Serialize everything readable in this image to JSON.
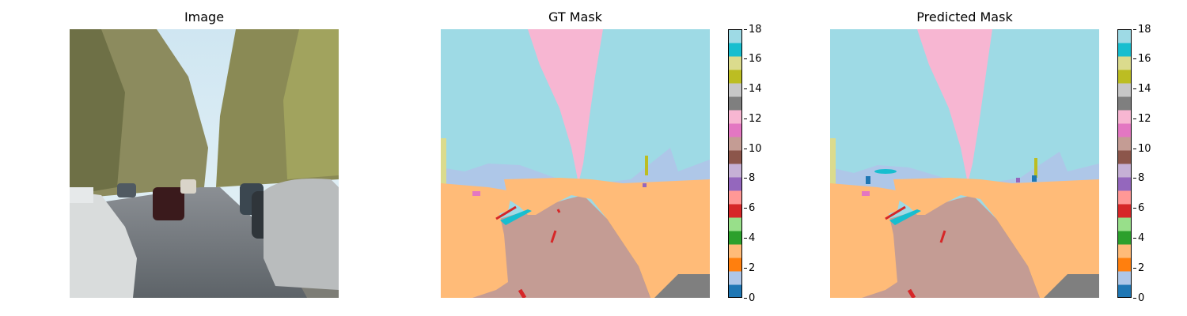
{
  "panels": {
    "image": {
      "title": "Image"
    },
    "gt": {
      "title": "GT Mask"
    },
    "pred": {
      "title": "Predicted Mask"
    }
  },
  "colormap": {
    "name": "tab20",
    "colors": [
      "#1f77b4",
      "#aec7e8",
      "#ff7f0e",
      "#ffbb78",
      "#2ca02c",
      "#98df8a",
      "#d62728",
      "#ff9896",
      "#9467bd",
      "#c5b0d5",
      "#8c564b",
      "#c49c94",
      "#e377c2",
      "#f7b6d2",
      "#7f7f7f",
      "#c7c7c7",
      "#bcbd22",
      "#dbdb8d",
      "#17becf",
      "#9edae5"
    ]
  },
  "chart_data": [
    {
      "type": "image",
      "title": "Image"
    },
    {
      "type": "heatmap",
      "title": "GT Mask",
      "colorbar": {
        "ticks": [
          0,
          2,
          4,
          6,
          8,
          10,
          12,
          14,
          16,
          18
        ],
        "range": [
          0,
          18
        ]
      },
      "classes_present": [
        1,
        3,
        6,
        8,
        9,
        11,
        13,
        16,
        17,
        18
      ]
    },
    {
      "type": "heatmap",
      "title": "Predicted Mask",
      "colorbar": {
        "ticks": [
          0,
          2,
          4,
          6,
          8,
          10,
          12,
          14,
          16,
          18
        ],
        "range": [
          0,
          18
        ]
      },
      "classes_present": [
        0,
        1,
        3,
        6,
        8,
        9,
        11,
        13,
        16,
        17,
        18
      ]
    }
  ]
}
